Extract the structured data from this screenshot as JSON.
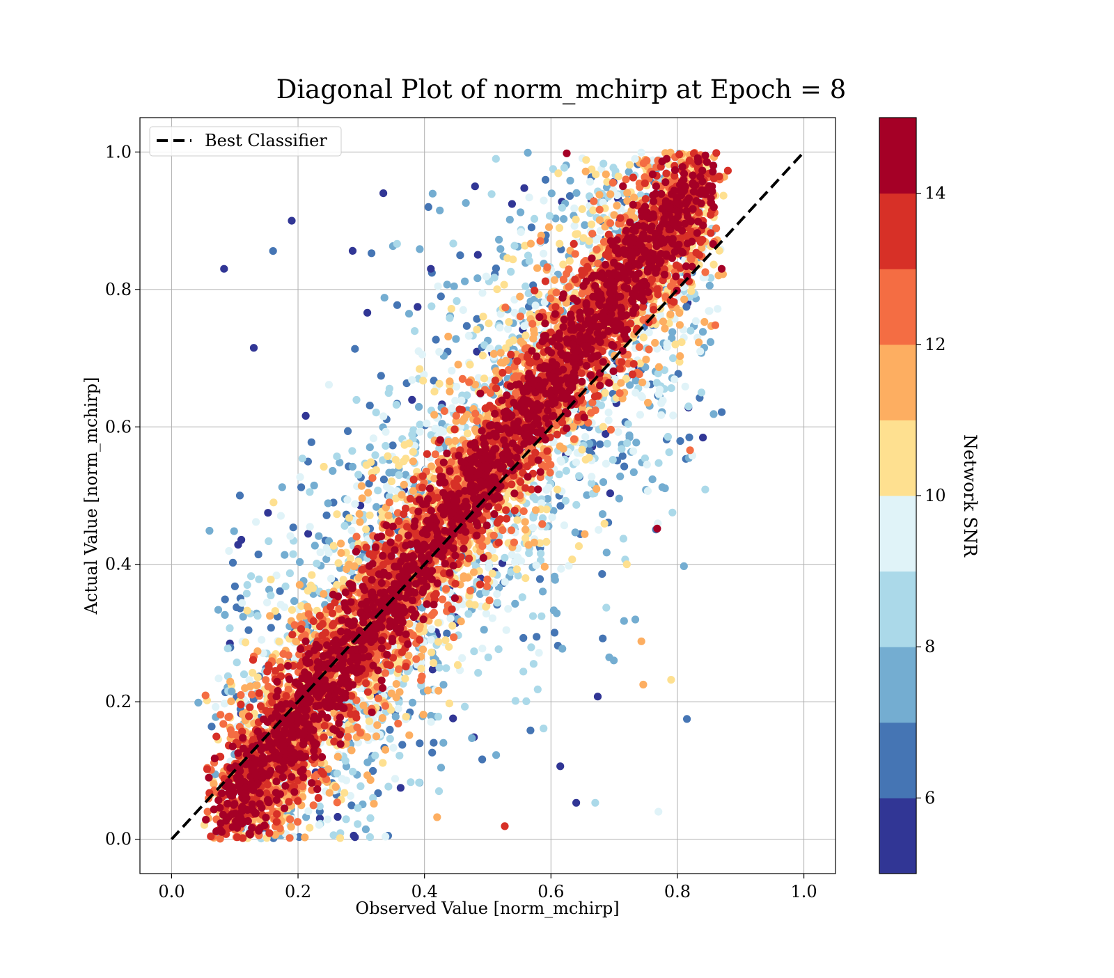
{
  "chart_data": {
    "type": "scatter",
    "title": "Diagonal Plot of norm_mchirp at Epoch = 8",
    "xlabel": "Observed Value [norm_mchirp]",
    "ylabel": "Actual Value [norm_mchirp]",
    "xlim": [
      -0.05,
      1.05
    ],
    "ylim": [
      -0.05,
      1.05
    ],
    "xticks": [
      0.0,
      0.2,
      0.4,
      0.6,
      0.8,
      1.0
    ],
    "yticks": [
      0.0,
      0.2,
      0.4,
      0.6,
      0.8,
      1.0
    ],
    "xtick_labels": [
      "0.0",
      "0.2",
      "0.4",
      "0.6",
      "0.8",
      "1.0"
    ],
    "ytick_labels": [
      "0.0",
      "0.2",
      "0.4",
      "0.6",
      "0.8",
      "1.0"
    ],
    "grid": true,
    "legend": {
      "position": "top-left",
      "entries": [
        {
          "label": "Best Classifier",
          "style": "dashed",
          "color": "#000000"
        }
      ]
    },
    "reference_line": {
      "name": "Best Classifier",
      "x": [
        0.0,
        1.0
      ],
      "y": [
        0.0,
        1.0
      ]
    },
    "colorbar": {
      "label": "Network SNR",
      "range": [
        5,
        15
      ],
      "ticks": [
        6,
        8,
        10,
        12,
        14
      ],
      "tick_labels": [
        "6",
        "8",
        "10",
        "12",
        "14"
      ],
      "bins": 10,
      "colors": [
        "#313695",
        "#4575b4",
        "#74add1",
        "#abd9e9",
        "#e0f3f8",
        "#fee090",
        "#fdae61",
        "#f46d43",
        "#d73027",
        "#a50026"
      ]
    },
    "points": [
      [
        0.083,
        0.83,
        5.2
      ],
      [
        0.64,
        0.053,
        5.6
      ],
      [
        0.67,
        0.053,
        8.4
      ],
      [
        0.527,
        0.019,
        13.5
      ],
      [
        0.29,
        0.003,
        5.3
      ],
      [
        0.746,
        0.225,
        11.5
      ],
      [
        0.743,
        0.288,
        11.7
      ],
      [
        0.768,
        0.452,
        14.8
      ],
      [
        0.82,
        0.566,
        12.1
      ],
      [
        0.733,
        0.99,
        9.6
      ],
      [
        0.683,
        0.983,
        8.2
      ],
      [
        0.87,
        0.83,
        14.5
      ],
      [
        0.86,
        0.748,
        12.6
      ],
      [
        0.48,
        0.95,
        5.4
      ],
      [
        0.513,
        0.99,
        8.6
      ],
      [
        0.625,
        0.998,
        14.9
      ],
      [
        0.19,
        0.9,
        5.2
      ],
      [
        0.13,
        0.715,
        5.3
      ],
      [
        0.092,
        0.307,
        8.5
      ],
      [
        0.095,
        0.215,
        7.2
      ],
      [
        0.42,
        0.032,
        11.5
      ],
      [
        0.77,
        0.04,
        9.4
      ],
      [
        0.815,
        0.175,
        6.2
      ],
      [
        0.838,
        0.65,
        8.8
      ],
      [
        0.79,
        0.232,
        10.2
      ],
      [
        0.72,
        0.4,
        10.5
      ],
      [
        0.41,
        0.83,
        5.1
      ],
      [
        0.335,
        0.94,
        5.2
      ]
    ]
  }
}
